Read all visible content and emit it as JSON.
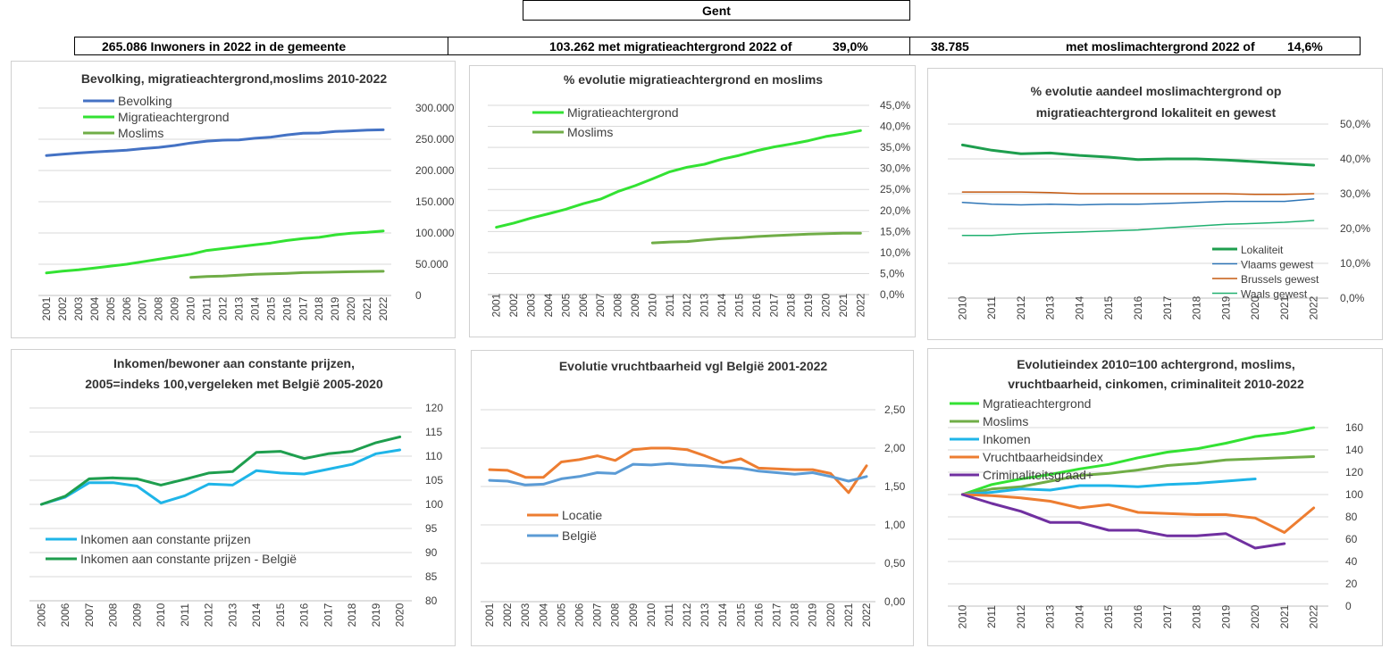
{
  "header": {
    "title": "Gent",
    "stat_population": "265.086 Inwoners in 2022 in de gemeente",
    "stat_migration": "103.262 met migratieachtergrond 2022 of",
    "stat_migration_pct": "39,0%",
    "stat_muslim_count": "38.785",
    "stat_muslim_label": "met moslimachtergrond 2022 of",
    "stat_muslim_pct": "14,6%"
  },
  "chart_data": [
    {
      "id": "c1",
      "type": "line",
      "title": [
        "Bevolking, migratieachtergrond,moslims 2010-2022"
      ],
      "x": [
        "2001",
        "2002",
        "2003",
        "2004",
        "2005",
        "2006",
        "2007",
        "2008",
        "2009",
        "2010",
        "2011",
        "2012",
        "2013",
        "2014",
        "2015",
        "2016",
        "2017",
        "2018",
        "2019",
        "2020",
        "2021",
        "2022"
      ],
      "y_ticks": [
        "0",
        "50.000",
        "100.000",
        "150.000",
        "200.000",
        "250.000",
        "300.000"
      ],
      "ylim": [
        0,
        300000
      ],
      "legend_position": "top-left",
      "series": [
        {
          "name": "Bevolking",
          "color": "#4472C4",
          "values": [
            224000,
            226000,
            228000,
            229500,
            231000,
            232500,
            235000,
            237000,
            240000,
            244000,
            247000,
            248500,
            249000,
            251500,
            253500,
            257000,
            259500,
            260000,
            262500,
            263500,
            264500,
            265086
          ]
        },
        {
          "name": "Migratieachtergrond",
          "color": "#33E233",
          "values": [
            36000,
            39000,
            41000,
            44000,
            47000,
            50000,
            54000,
            58000,
            62000,
            66000,
            72000,
            75000,
            78000,
            81000,
            84000,
            88000,
            91000,
            93000,
            97000,
            99500,
            101000,
            103262
          ]
        },
        {
          "name": "Moslims",
          "color": "#70AD47",
          "values": [
            null,
            null,
            null,
            null,
            null,
            null,
            null,
            null,
            null,
            29000,
            30500,
            31000,
            32500,
            34000,
            34500,
            35500,
            36500,
            37000,
            37500,
            38000,
            38500,
            38785
          ]
        }
      ]
    },
    {
      "id": "c2",
      "type": "line",
      "title": [
        "% evolutie migratieachtergrond  en moslims"
      ],
      "x": [
        "2001",
        "2002",
        "2003",
        "2004",
        "2005",
        "2006",
        "2007",
        "2008",
        "2009",
        "2010",
        "2011",
        "2012",
        "2013",
        "2014",
        "2015",
        "2016",
        "2017",
        "2018",
        "2019",
        "2020",
        "2021",
        "2022"
      ],
      "y_ticks": [
        "0,0%",
        "5,0%",
        "10,0%",
        "15,0%",
        "20,0%",
        "25,0%",
        "30,0%",
        "35,0%",
        "40,0%",
        "45,0%"
      ],
      "ylim": [
        0,
        45
      ],
      "legend_position": "top-left",
      "series": [
        {
          "name": "Migratieachtergrond",
          "color": "#33E233",
          "values": [
            16.0,
            17.0,
            18.2,
            19.2,
            20.3,
            21.6,
            22.7,
            24.5,
            25.9,
            27.5,
            29.2,
            30.3,
            31.0,
            32.2,
            33.1,
            34.2,
            35.1,
            35.8,
            36.6,
            37.6,
            38.2,
            39.0
          ]
        },
        {
          "name": "Moslims",
          "color": "#70AD47",
          "values": [
            null,
            null,
            null,
            null,
            null,
            null,
            null,
            null,
            null,
            12.3,
            12.5,
            12.6,
            13.0,
            13.3,
            13.5,
            13.8,
            14.0,
            14.2,
            14.4,
            14.5,
            14.6,
            14.6
          ]
        }
      ]
    },
    {
      "id": "c3",
      "type": "line",
      "title": [
        "% evolutie aandeel moslimachtergrond op",
        "migratieachtergrond lokaliteit en gewest"
      ],
      "x": [
        "2010",
        "2011",
        "2012",
        "2013",
        "2014",
        "2015",
        "2016",
        "2017",
        "2018",
        "2019",
        "2020",
        "2021",
        "2022"
      ],
      "y_ticks": [
        "0,0%",
        "10,0%",
        "20,0%",
        "30,0%",
        "40,0%",
        "50,0%"
      ],
      "ylim": [
        0,
        50
      ],
      "legend_position": "bottom-right",
      "series": [
        {
          "name": "Lokaliteit",
          "color": "#1E9E4E",
          "width": 3,
          "values": [
            44.0,
            42.5,
            41.5,
            41.7,
            41.0,
            40.5,
            39.8,
            40.0,
            40.0,
            39.7,
            39.2,
            38.7,
            38.2
          ]
        },
        {
          "name": "Vlaams gewest",
          "color": "#2E75B6",
          "width": 1.5,
          "values": [
            27.5,
            27.0,
            26.8,
            27.0,
            26.8,
            27.0,
            27.0,
            27.2,
            27.5,
            27.8,
            27.8,
            27.8,
            28.5
          ]
        },
        {
          "name": "Brussels gewest",
          "color": "#C55A11",
          "width": 1.5,
          "values": [
            30.5,
            30.5,
            30.5,
            30.3,
            30.0,
            30.0,
            30.0,
            30.0,
            30.0,
            30.0,
            29.8,
            29.8,
            30.0
          ]
        },
        {
          "name": "Waals gewest",
          "color": "#20B070",
          "width": 1.5,
          "values": [
            18.0,
            18.0,
            18.5,
            18.8,
            19.0,
            19.3,
            19.6,
            20.2,
            20.7,
            21.2,
            21.5,
            21.8,
            22.3
          ]
        }
      ]
    },
    {
      "id": "c4",
      "type": "line",
      "title": [
        "Inkomen/bewoner aan constante prijzen,",
        "2005=indeks 100,vergeleken met België 2005-2020"
      ],
      "x": [
        "2005",
        "2006",
        "2007",
        "2008",
        "2009",
        "2010",
        "2011",
        "2012",
        "2013",
        "2014",
        "2015",
        "2016",
        "2017",
        "2018",
        "2019",
        "2020"
      ],
      "y_ticks": [
        "80",
        "85",
        "90",
        "95",
        "100",
        "105",
        "110",
        "115",
        "120"
      ],
      "ylim": [
        80,
        120
      ],
      "legend_position": "bottom-left",
      "series": [
        {
          "name": "Inkomen aan constante prijzen",
          "color": "#1FB5E8",
          "values": [
            100,
            101.5,
            104.5,
            104.5,
            103.8,
            100.3,
            101.8,
            104.2,
            104,
            107,
            106.5,
            106.3,
            107.3,
            108.3,
            110.5,
            111.3
          ]
        },
        {
          "name": "Inkomen aan constante prijzen - België",
          "color": "#1E9E4E",
          "values": [
            100,
            101.7,
            105.3,
            105.5,
            105.3,
            104,
            105.2,
            106.5,
            106.8,
            110.8,
            111,
            109.5,
            110.5,
            111,
            112.8,
            114
          ]
        }
      ]
    },
    {
      "id": "c5",
      "type": "line",
      "title": [
        "Evolutie vruchtbaarheid vgl België 2001-2022"
      ],
      "x": [
        "2001",
        "2002",
        "2003",
        "2004",
        "2005",
        "2006",
        "2007",
        "2008",
        "2009",
        "2010",
        "2011",
        "2012",
        "2013",
        "2014",
        "2015",
        "2016",
        "2017",
        "2018",
        "2019",
        "2020",
        "2021",
        "2022"
      ],
      "y_ticks": [
        "0,00",
        "0,50",
        "1,00",
        "1,50",
        "2,00",
        "2,50"
      ],
      "ylim": [
        0,
        2.5
      ],
      "legend_position": "center-left",
      "series": [
        {
          "name": "Locatie",
          "color": "#ED7D31",
          "values": [
            1.72,
            1.71,
            1.62,
            1.62,
            1.82,
            1.85,
            1.9,
            1.84,
            1.98,
            2.0,
            2.0,
            1.98,
            1.9,
            1.81,
            1.86,
            1.74,
            1.73,
            1.72,
            1.72,
            1.67,
            1.42,
            1.77
          ]
        },
        {
          "name": "België",
          "color": "#5B9BD5",
          "values": [
            1.58,
            1.57,
            1.52,
            1.53,
            1.6,
            1.63,
            1.68,
            1.67,
            1.79,
            1.78,
            1.8,
            1.78,
            1.77,
            1.75,
            1.74,
            1.7,
            1.68,
            1.66,
            1.68,
            1.63,
            1.57,
            1.63
          ]
        }
      ]
    },
    {
      "id": "c6",
      "type": "line",
      "title": [
        "Evolutieindex 2010=100 achtergrond, moslims,",
        "vruchtbaarheid, cinkomen, criminaliteit  2010-2022"
      ],
      "x": [
        "2010",
        "2011",
        "2012",
        "2013",
        "2014",
        "2015",
        "2016",
        "2017",
        "2018",
        "2019",
        "2020",
        "2021",
        "2022"
      ],
      "y_ticks": [
        "0",
        "20",
        "40",
        "60",
        "80",
        "100",
        "120",
        "140",
        "160"
      ],
      "ylim": [
        0,
        160
      ],
      "legend_position": "top-left",
      "series": [
        {
          "name": "Mgratieachtergrond",
          "color": "#33E233",
          "values": [
            100,
            109,
            114,
            118,
            123,
            127,
            133,
            138,
            141,
            146,
            152,
            155,
            160
          ]
        },
        {
          "name": "Moslims",
          "color": "#70AD47",
          "values": [
            100,
            105,
            107,
            112,
            117,
            119,
            122,
            126,
            128,
            131,
            132,
            133,
            134
          ]
        },
        {
          "name": "Inkomen",
          "color": "#1FB5E8",
          "values": [
            100,
            102,
            105,
            104,
            108,
            108,
            107,
            109,
            110,
            112,
            114,
            null,
            null
          ]
        },
        {
          "name": "Vruchtbaarheidsindex",
          "color": "#ED7D31",
          "values": [
            100,
            99,
            97,
            94,
            88,
            91,
            84,
            83,
            82,
            82,
            79,
            66,
            88
          ]
        },
        {
          "name": "Criminaliteitsgraad+",
          "color": "#7030A0",
          "values": [
            100,
            92,
            85,
            75,
            75,
            68,
            68,
            63,
            63,
            65,
            52,
            56,
            null
          ]
        }
      ]
    }
  ]
}
